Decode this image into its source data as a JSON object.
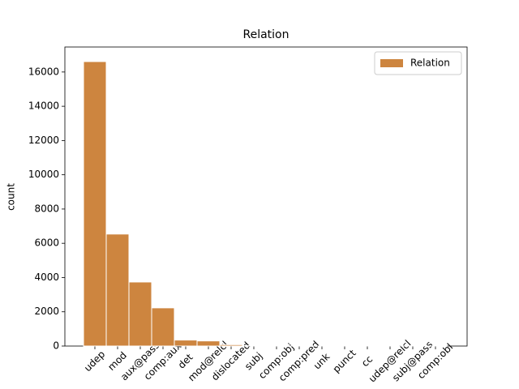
{
  "chart_data": {
    "type": "bar",
    "title": "Relation",
    "y_label": "count",
    "categories": [
      "udep",
      "mod",
      "aux@pass",
      "comp:aux",
      "det",
      "mod@relcl",
      "dislocated",
      "subj",
      "comp:obj",
      "comp:pred",
      "unk",
      "punct",
      "cc",
      "udep@relcl",
      "subj@pass",
      "comp:obl"
    ],
    "series": [
      {
        "name": "Relation",
        "color": "#cd853f",
        "values": [
          16610,
          6540,
          3740,
          2230,
          350,
          300,
          80,
          20,
          8,
          5,
          5,
          4,
          3,
          3,
          2,
          2
        ]
      }
    ],
    "ylim": [
      0,
      17460
    ],
    "yticks": [
      0,
      2000,
      4000,
      6000,
      8000,
      10000,
      12000,
      14000,
      16000
    ],
    "grid": false,
    "legend": "upper right"
  }
}
